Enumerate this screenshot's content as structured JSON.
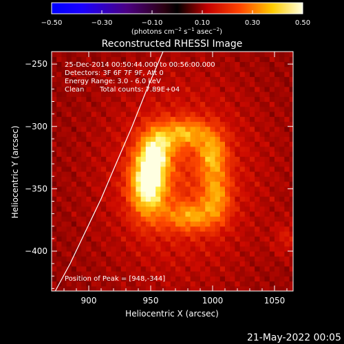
{
  "chart_data": {
    "type": "heatmap",
    "title": "Reconstructed RHESSI Image",
    "xlabel": "Heliocentric X (arcsec)",
    "ylabel": "Heliocentric Y (arcsec)",
    "xlim": [
      870,
      1065
    ],
    "ylim": [
      -432,
      -240
    ],
    "xticks": [
      900,
      950,
      1000,
      1050
    ],
    "yticks": [
      -250,
      -300,
      -350,
      -400
    ],
    "colorbar": {
      "ticks": [
        -0.5,
        -0.3,
        -0.1,
        0.1,
        0.3,
        0.5
      ],
      "tick_labels": [
        "-0.50",
        "-0.30",
        "-0.10",
        "0.10",
        "0.30",
        "0.50"
      ],
      "range": [
        -0.5,
        0.5
      ]
    },
    "annotations": {
      "time": "25-Dec-2014 00:50:44.000 to 00:56:00.000",
      "detectors": "Detectors: 3F 6F 7F 9F, Att 0",
      "energy": "Energy Range: 3.0 - 6.0 keV",
      "clean": "Clean",
      "counts": "Total counts: 7.89E+04",
      "peak": "Position of Peak = [948,-344]"
    },
    "peak": {
      "x": 948,
      "y": -344
    },
    "limb": [
      [
        873,
        -432
      ],
      [
        885,
        -410
      ],
      [
        897,
        -385
      ],
      [
        910,
        -358
      ],
      [
        922,
        -330
      ],
      [
        935,
        -300
      ],
      [
        947,
        -270
      ],
      [
        960,
        -240
      ]
    ],
    "sources": [
      {
        "x": 948,
        "y": -345,
        "sx": 10,
        "sy": 18,
        "amp": 0.42
      },
      {
        "x": 955,
        "y": -318,
        "sx": 9,
        "sy": 12,
        "amp": 0.26
      },
      {
        "x": 978,
        "y": -305,
        "sx": 14,
        "sy": 8,
        "amp": 0.22
      },
      {
        "x": 1000,
        "y": -322,
        "sx": 8,
        "sy": 12,
        "amp": 0.22
      },
      {
        "x": 1003,
        "y": -355,
        "sx": 8,
        "sy": 14,
        "amp": 0.2
      },
      {
        "x": 982,
        "y": -372,
        "sx": 14,
        "sy": 8,
        "amp": 0.2
      },
      {
        "x": 975,
        "y": -340,
        "sx": 45,
        "sy": 55,
        "amp": 0.14
      },
      {
        "x": 1060,
        "y": -390,
        "sx": 8,
        "sy": 10,
        "amp": 0.08
      }
    ],
    "background": 0.05
  },
  "footer": {
    "date": "21-May-2022 00:05"
  }
}
